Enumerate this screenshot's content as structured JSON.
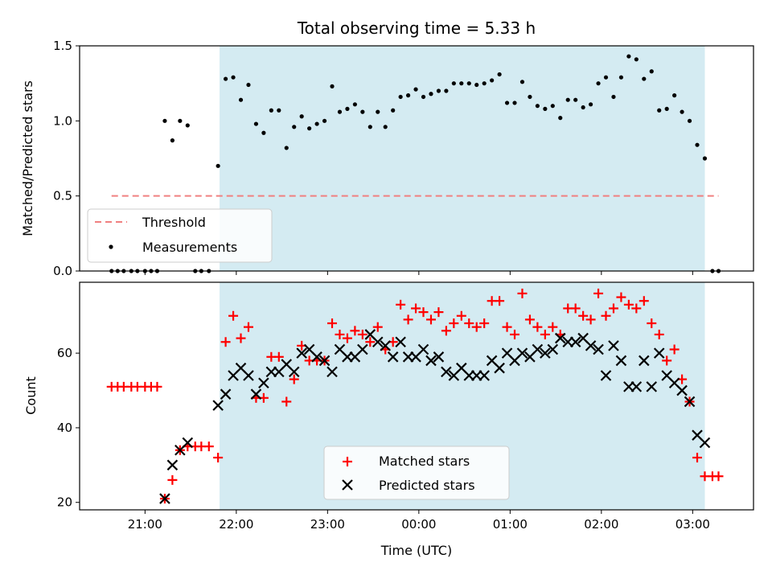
{
  "chart_data": [
    {
      "type": "scatter",
      "title": "Total observing time = 5.33 h",
      "ylabel": "Matched/Predicted stars",
      "xlabel": "",
      "xlim": [
        "20:17",
        "03:40"
      ],
      "ylim": [
        0,
        1.5
      ],
      "yticks": [
        "0.0",
        "0.5",
        "1.0",
        "1.5"
      ],
      "shaded_interval": [
        "21:49",
        "03:08"
      ],
      "threshold": {
        "name": "Threshold",
        "value": 0.5,
        "x_range": [
          "20:38",
          "03:17"
        ],
        "color": "#f08080"
      },
      "legend": {
        "position": "lower-left",
        "entries": [
          "Threshold",
          "Measurements"
        ]
      },
      "series": [
        {
          "name": "Measurements",
          "color": "#000000",
          "points": [
            [
              "20:38",
              0
            ],
            [
              "20:42",
              0
            ],
            [
              "20:46",
              0
            ],
            [
              "20:51",
              0
            ],
            [
              "20:55",
              0
            ],
            [
              "21:00",
              0
            ],
            [
              "21:04",
              0
            ],
            [
              "21:08",
              0
            ],
            [
              "21:13",
              1.0
            ],
            [
              "21:18",
              0.87
            ],
            [
              "21:23",
              1.0
            ],
            [
              "21:28",
              0.97
            ],
            [
              "21:33",
              0
            ],
            [
              "21:37",
              0
            ],
            [
              "21:42",
              0
            ],
            [
              "21:48",
              0.7
            ],
            [
              "21:53",
              1.28
            ],
            [
              "21:58",
              1.29
            ],
            [
              "22:03",
              1.14
            ],
            [
              "22:08",
              1.24
            ],
            [
              "22:13",
              0.98
            ],
            [
              "22:18",
              0.92
            ],
            [
              "22:23",
              1.07
            ],
            [
              "22:28",
              1.07
            ],
            [
              "22:33",
              0.82
            ],
            [
              "22:38",
              0.96
            ],
            [
              "22:43",
              1.03
            ],
            [
              "22:48",
              0.95
            ],
            [
              "22:53",
              0.98
            ],
            [
              "22:58",
              1.0
            ],
            [
              "23:03",
              1.23
            ],
            [
              "23:08",
              1.06
            ],
            [
              "23:13",
              1.08
            ],
            [
              "23:18",
              1.11
            ],
            [
              "23:23",
              1.06
            ],
            [
              "23:28",
              0.96
            ],
            [
              "23:33",
              1.06
            ],
            [
              "23:38",
              0.96
            ],
            [
              "23:43",
              1.07
            ],
            [
              "23:48",
              1.16
            ],
            [
              "23:53",
              1.17
            ],
            [
              "23:58",
              1.21
            ],
            [
              "00:03",
              1.16
            ],
            [
              "00:08",
              1.18
            ],
            [
              "00:13",
              1.2
            ],
            [
              "00:18",
              1.2
            ],
            [
              "00:23",
              1.25
            ],
            [
              "00:28",
              1.25
            ],
            [
              "00:33",
              1.25
            ],
            [
              "00:38",
              1.24
            ],
            [
              "00:43",
              1.25
            ],
            [
              "00:48",
              1.27
            ],
            [
              "00:53",
              1.31
            ],
            [
              "00:58",
              1.12
            ],
            [
              "01:03",
              1.12
            ],
            [
              "01:08",
              1.26
            ],
            [
              "01:13",
              1.16
            ],
            [
              "01:18",
              1.1
            ],
            [
              "01:23",
              1.08
            ],
            [
              "01:28",
              1.1
            ],
            [
              "01:33",
              1.02
            ],
            [
              "01:38",
              1.14
            ],
            [
              "01:43",
              1.14
            ],
            [
              "01:48",
              1.09
            ],
            [
              "01:53",
              1.11
            ],
            [
              "01:58",
              1.25
            ],
            [
              "02:03",
              1.29
            ],
            [
              "02:08",
              1.16
            ],
            [
              "02:13",
              1.29
            ],
            [
              "02:18",
              1.43
            ],
            [
              "02:23",
              1.41
            ],
            [
              "02:28",
              1.28
            ],
            [
              "02:33",
              1.33
            ],
            [
              "02:38",
              1.07
            ],
            [
              "02:43",
              1.08
            ],
            [
              "02:48",
              1.17
            ],
            [
              "02:53",
              1.06
            ],
            [
              "02:58",
              1.0
            ],
            [
              "03:03",
              0.84
            ],
            [
              "03:08",
              0.75
            ],
            [
              "03:13",
              0
            ],
            [
              "03:17",
              0
            ]
          ]
        }
      ]
    },
    {
      "type": "scatter",
      "title": "",
      "ylabel": "Count",
      "xlabel": "Time (UTC)",
      "xlim": [
        "20:17",
        "03:40"
      ],
      "ylim": [
        18,
        79
      ],
      "yticks": [
        "20",
        "40",
        "60"
      ],
      "xticks": [
        "21:00",
        "22:00",
        "23:00",
        "00:00",
        "01:00",
        "02:00",
        "03:00"
      ],
      "shaded_interval": [
        "21:49",
        "03:08"
      ],
      "legend": {
        "position": "lower-center",
        "entries": [
          "Matched stars",
          "Predicted stars"
        ]
      },
      "series": [
        {
          "name": "Matched stars",
          "marker": "plus",
          "color": "#ff0000",
          "points": [
            [
              "20:38",
              51
            ],
            [
              "20:42",
              51
            ],
            [
              "20:46",
              51
            ],
            [
              "20:51",
              51
            ],
            [
              "20:55",
              51
            ],
            [
              "21:00",
              51
            ],
            [
              "21:04",
              51
            ],
            [
              "21:08",
              51
            ],
            [
              "21:13",
              21
            ],
            [
              "21:18",
              26
            ],
            [
              "21:23",
              34
            ],
            [
              "21:28",
              35
            ],
            [
              "21:33",
              35
            ],
            [
              "21:37",
              35
            ],
            [
              "21:42",
              35
            ],
            [
              "21:48",
              32
            ],
            [
              "21:53",
              63
            ],
            [
              "21:58",
              70
            ],
            [
              "22:03",
              64
            ],
            [
              "22:08",
              67
            ],
            [
              "22:13",
              48
            ],
            [
              "22:18",
              48
            ],
            [
              "22:23",
              59
            ],
            [
              "22:28",
              59
            ],
            [
              "22:33",
              47
            ],
            [
              "22:38",
              53
            ],
            [
              "22:43",
              62
            ],
            [
              "22:48",
              58
            ],
            [
              "22:53",
              58
            ],
            [
              "22:58",
              58
            ],
            [
              "23:03",
              68
            ],
            [
              "23:08",
              65
            ],
            [
              "23:13",
              64
            ],
            [
              "23:18",
              66
            ],
            [
              "23:23",
              65
            ],
            [
              "23:28",
              63
            ],
            [
              "23:33",
              67
            ],
            [
              "23:38",
              61
            ],
            [
              "23:43",
              63
            ],
            [
              "23:48",
              73
            ],
            [
              "23:53",
              69
            ],
            [
              "23:58",
              72
            ],
            [
              "00:03",
              71
            ],
            [
              "00:08",
              69
            ],
            [
              "00:13",
              71
            ],
            [
              "00:18",
              66
            ],
            [
              "00:23",
              68
            ],
            [
              "00:28",
              70
            ],
            [
              "00:33",
              68
            ],
            [
              "00:38",
              67
            ],
            [
              "00:43",
              68
            ],
            [
              "00:48",
              74
            ],
            [
              "00:53",
              74
            ],
            [
              "00:58",
              67
            ],
            [
              "01:03",
              65
            ],
            [
              "01:08",
              76
            ],
            [
              "01:13",
              69
            ],
            [
              "01:18",
              67
            ],
            [
              "01:23",
              65
            ],
            [
              "01:28",
              67
            ],
            [
              "01:33",
              65
            ],
            [
              "01:38",
              72
            ],
            [
              "01:43",
              72
            ],
            [
              "01:48",
              70
            ],
            [
              "01:53",
              69
            ],
            [
              "01:58",
              76
            ],
            [
              "02:03",
              70
            ],
            [
              "02:08",
              72
            ],
            [
              "02:13",
              75
            ],
            [
              "02:18",
              73
            ],
            [
              "02:23",
              72
            ],
            [
              "02:28",
              74
            ],
            [
              "02:33",
              68
            ],
            [
              "02:38",
              65
            ],
            [
              "02:43",
              58
            ],
            [
              "02:48",
              61
            ],
            [
              "02:53",
              53
            ],
            [
              "02:58",
              47
            ],
            [
              "03:03",
              32
            ],
            [
              "03:08",
              27
            ],
            [
              "03:13",
              27
            ],
            [
              "03:17",
              27
            ]
          ]
        },
        {
          "name": "Predicted stars",
          "marker": "x",
          "color": "#000000",
          "points": [
            [
              "21:13",
              21
            ],
            [
              "21:18",
              30
            ],
            [
              "21:23",
              34
            ],
            [
              "21:28",
              36
            ],
            [
              "21:48",
              46
            ],
            [
              "21:53",
              49
            ],
            [
              "21:58",
              54
            ],
            [
              "22:03",
              56
            ],
            [
              "22:08",
              54
            ],
            [
              "22:13",
              49
            ],
            [
              "22:18",
              52
            ],
            [
              "22:23",
              55
            ],
            [
              "22:28",
              55
            ],
            [
              "22:33",
              57
            ],
            [
              "22:38",
              55
            ],
            [
              "22:43",
              60
            ],
            [
              "22:48",
              61
            ],
            [
              "22:53",
              59
            ],
            [
              "22:58",
              58
            ],
            [
              "23:03",
              55
            ],
            [
              "23:08",
              61
            ],
            [
              "23:13",
              59
            ],
            [
              "23:18",
              59
            ],
            [
              "23:23",
              61
            ],
            [
              "23:28",
              65
            ],
            [
              "23:33",
              63
            ],
            [
              "23:38",
              62
            ],
            [
              "23:43",
              59
            ],
            [
              "23:48",
              63
            ],
            [
              "23:53",
              59
            ],
            [
              "23:58",
              59
            ],
            [
              "00:03",
              61
            ],
            [
              "00:08",
              58
            ],
            [
              "00:13",
              59
            ],
            [
              "00:18",
              55
            ],
            [
              "00:23",
              54
            ],
            [
              "00:28",
              56
            ],
            [
              "00:33",
              54
            ],
            [
              "00:38",
              54
            ],
            [
              "00:43",
              54
            ],
            [
              "00:48",
              58
            ],
            [
              "00:53",
              56
            ],
            [
              "00:58",
              60
            ],
            [
              "01:03",
              58
            ],
            [
              "01:08",
              60
            ],
            [
              "01:13",
              59
            ],
            [
              "01:18",
              61
            ],
            [
              "01:23",
              60
            ],
            [
              "01:28",
              61
            ],
            [
              "01:33",
              64
            ],
            [
              "01:38",
              63
            ],
            [
              "01:43",
              63
            ],
            [
              "01:48",
              64
            ],
            [
              "01:53",
              62
            ],
            [
              "01:58",
              61
            ],
            [
              "02:03",
              54
            ],
            [
              "02:08",
              62
            ],
            [
              "02:13",
              58
            ],
            [
              "02:18",
              51
            ],
            [
              "02:23",
              51
            ],
            [
              "02:28",
              58
            ],
            [
              "02:33",
              51
            ],
            [
              "02:38",
              60
            ],
            [
              "02:43",
              54
            ],
            [
              "02:48",
              52
            ],
            [
              "02:53",
              50
            ],
            [
              "02:58",
              47
            ],
            [
              "03:03",
              38
            ],
            [
              "03:08",
              36
            ]
          ]
        }
      ]
    }
  ]
}
